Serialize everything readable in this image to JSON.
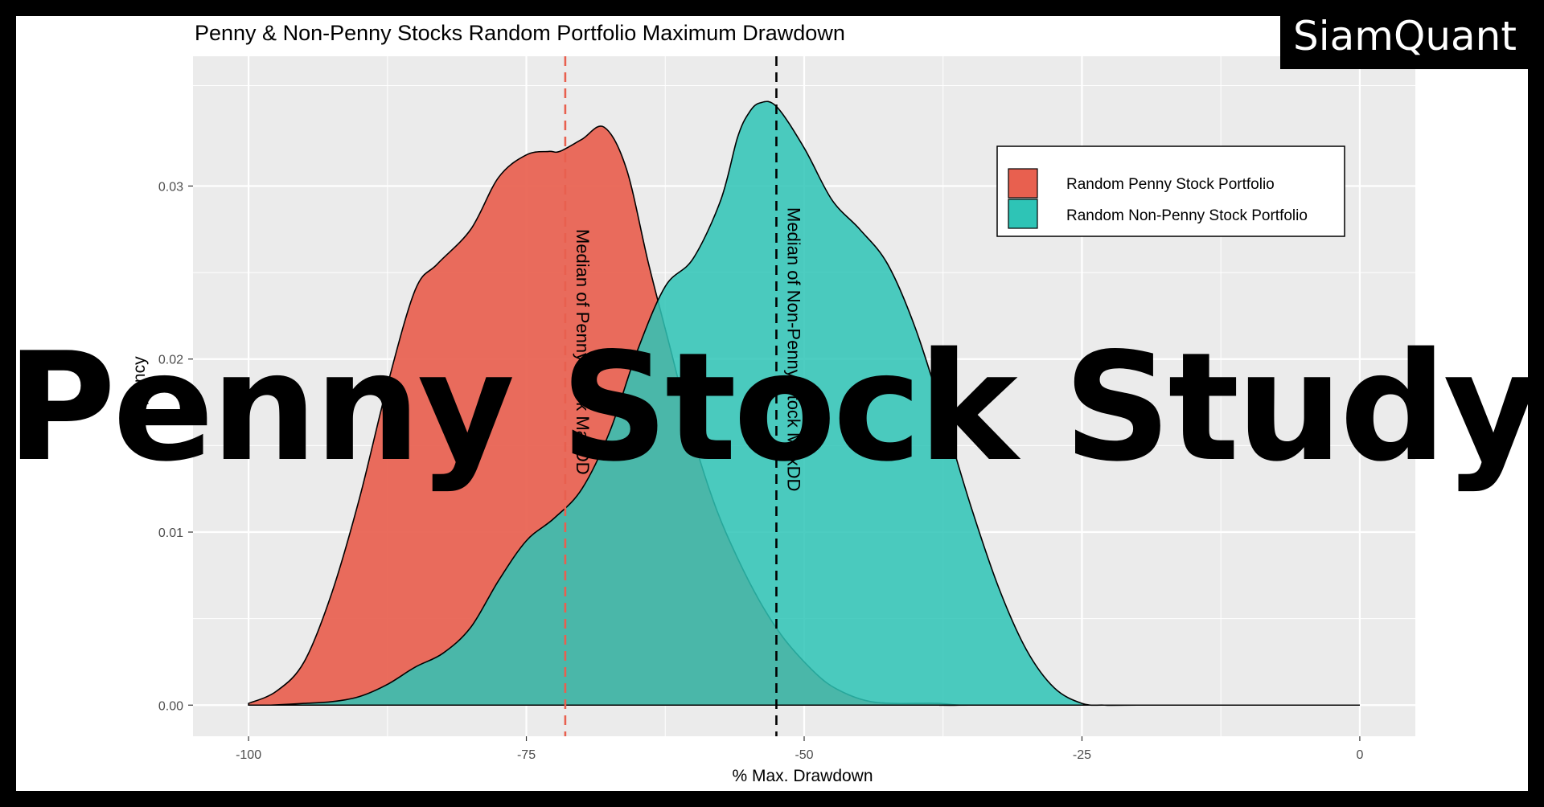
{
  "brand": {
    "name": "SiamQuant"
  },
  "overlay": {
    "title": "Penny Stock Study"
  },
  "chart_data": {
    "type": "area",
    "title": "Penny & Non-Penny Stocks Random Portfolio Maximum Drawdown",
    "xlabel": "% Max. Drawdown",
    "ylabel": "Frequency",
    "xlim": [
      -105,
      5
    ],
    "ylim": [
      -0.0018,
      0.0375
    ],
    "x_ticks": [
      -100,
      -75,
      -50,
      -25,
      0
    ],
    "x_tick_labels": [
      "-100",
      "-75",
      "-50",
      "-25",
      "0"
    ],
    "y_ticks": [
      0.0,
      0.01,
      0.02,
      0.03
    ],
    "y_tick_labels": [
      "0.00",
      "0.01",
      "0.02",
      "0.03"
    ],
    "grid": true,
    "panel_background": "#ebebeb",
    "legend_position": "top-right",
    "series": [
      {
        "name": "Random Penny Stock Portfolio",
        "color": "#e8604f",
        "x": [
          -100,
          -97.5,
          -95,
          -92.5,
          -90,
          -87.5,
          -85,
          -83,
          -80,
          -77.5,
          -75,
          -73,
          -72,
          -70,
          -68,
          -66,
          -64,
          -62,
          -60,
          -58,
          -56,
          -54,
          -52,
          -50,
          -48,
          -46,
          -44,
          -42,
          -40,
          -38,
          -36,
          -35,
          0
        ],
        "y": [
          0.0001,
          0.0008,
          0.0025,
          0.0065,
          0.012,
          0.0185,
          0.024,
          0.0255,
          0.0275,
          0.0305,
          0.0318,
          0.032,
          0.032,
          0.0327,
          0.0334,
          0.031,
          0.0255,
          0.0205,
          0.0155,
          0.0115,
          0.0085,
          0.006,
          0.004,
          0.0025,
          0.0013,
          0.0006,
          0.0002,
          0.0001,
          0.0001,
          0.0001,
          0.0,
          0.0,
          0.0
        ]
      },
      {
        "name": "Random Non-Penny Stock Portfolio",
        "color": "#2ec4b6",
        "x": [
          -98,
          -95,
          -92.5,
          -90,
          -87.5,
          -85,
          -82.5,
          -80,
          -77.5,
          -75,
          -72.5,
          -70,
          -67.5,
          -65,
          -62.5,
          -60,
          -57.5,
          -56,
          -55,
          -54,
          -52.5,
          -50,
          -47.5,
          -45,
          -42.5,
          -40,
          -37.5,
          -35,
          -32.5,
          -30,
          -27.5,
          -25,
          -23,
          -20,
          0
        ],
        "y": [
          0.0,
          0.0001,
          0.0002,
          0.0005,
          0.0012,
          0.0022,
          0.003,
          0.0045,
          0.0072,
          0.0095,
          0.0108,
          0.0125,
          0.0158,
          0.0205,
          0.0242,
          0.0258,
          0.0292,
          0.0328,
          0.0342,
          0.0348,
          0.0346,
          0.0322,
          0.0292,
          0.0275,
          0.0255,
          0.0218,
          0.0168,
          0.0115,
          0.0068,
          0.0032,
          0.001,
          0.0001,
          0.0,
          0.0,
          0.0
        ]
      }
    ],
    "vlines": [
      {
        "x": -71.5,
        "color": "#e8604f",
        "style": "dashed",
        "label": "Median of Penny Stock MaxDD"
      },
      {
        "x": -52.5,
        "color": "#000000",
        "style": "dashed",
        "label": "Median of Non-Penny Stock MaxDD"
      }
    ]
  }
}
